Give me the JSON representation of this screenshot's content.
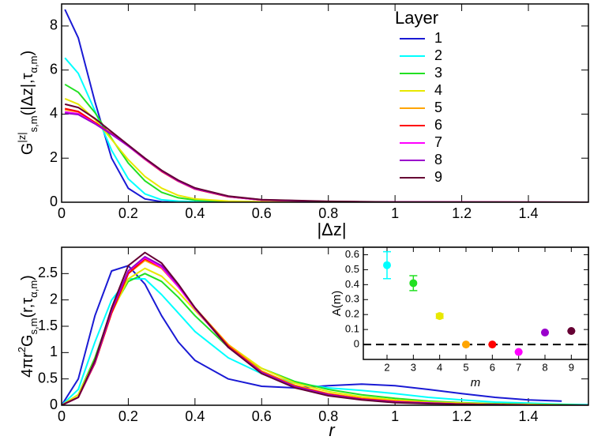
{
  "chart_data": [
    {
      "type": "line",
      "xlabel": "|Δz|",
      "ylabel": [
        {
          "text": "G"
        },
        {
          "text": "|z|",
          "role": "sup"
        },
        {
          "text": "s,m",
          "role": "sub"
        },
        {
          "text": "(|Δz|,τ"
        },
        {
          "text": "α,m",
          "role": "sub"
        },
        {
          "text": ")"
        }
      ],
      "xlim": [
        0,
        1.58
      ],
      "ylim": [
        0,
        9
      ],
      "xticks": [
        0,
        0.2,
        0.4,
        0.6,
        0.8,
        1,
        1.2,
        1.4
      ],
      "yticks": [
        0,
        2,
        4,
        6,
        8
      ],
      "legend_title": "Layer",
      "x": [
        0.01,
        0.05,
        0.1,
        0.15,
        0.2,
        0.25,
        0.3,
        0.35,
        0.4,
        0.5,
        0.6,
        0.8,
        1.0,
        1.58
      ],
      "series": [
        {
          "name": "1",
          "color": "#1a1ad4",
          "values": [
            8.75,
            7.46,
            4.56,
            2.0,
            0.63,
            0.15,
            0.02,
            0,
            0,
            0,
            0,
            0,
            0,
            0
          ]
        },
        {
          "name": "2",
          "color": "#00ffff",
          "values": [
            6.55,
            5.85,
            4.15,
            2.36,
            1.06,
            0.38,
            0.11,
            0.05,
            0.03,
            0.01,
            0,
            0,
            0,
            0
          ]
        },
        {
          "name": "3",
          "color": "#22e022",
          "values": [
            5.35,
            4.99,
            4.07,
            2.89,
            1.78,
            0.97,
            0.45,
            0.2,
            0.1,
            0.03,
            0.01,
            0,
            0,
            0
          ]
        },
        {
          "name": "4",
          "color": "#e8e800",
          "values": [
            4.7,
            4.45,
            3.76,
            2.85,
            1.93,
            1.17,
            0.64,
            0.31,
            0.15,
            0.05,
            0.02,
            0,
            0,
            0
          ]
        },
        {
          "name": "5",
          "color": "#ffa500",
          "values": [
            4.2,
            4.1,
            3.6,
            3.1,
            2.55,
            1.95,
            1.4,
            0.95,
            0.6,
            0.25,
            0.1,
            0.03,
            0.01,
            0
          ]
        },
        {
          "name": "6",
          "color": "#ff0000",
          "values": [
            4.25,
            4.12,
            3.62,
            3.1,
            2.55,
            1.95,
            1.4,
            0.95,
            0.6,
            0.25,
            0.1,
            0.03,
            0.01,
            0
          ]
        },
        {
          "name": "7",
          "color": "#ff00ff",
          "values": [
            4.1,
            4.02,
            3.58,
            3.08,
            2.55,
            1.96,
            1.42,
            0.96,
            0.61,
            0.26,
            0.1,
            0.03,
            0.01,
            0
          ]
        },
        {
          "name": "8",
          "color": "#9a00cc",
          "values": [
            4.05,
            3.98,
            3.56,
            3.08,
            2.56,
            1.98,
            1.43,
            0.97,
            0.62,
            0.26,
            0.11,
            0.03,
            0.01,
            0
          ]
        },
        {
          "name": "9",
          "color": "#660033",
          "values": [
            4.45,
            4.3,
            3.8,
            3.2,
            2.6,
            2.0,
            1.45,
            1.0,
            0.65,
            0.28,
            0.12,
            0.04,
            0.01,
            0
          ]
        }
      ]
    },
    {
      "type": "line",
      "xlabel": "r",
      "ylabel": [
        {
          "text": "4πr"
        },
        {
          "text": "2",
          "role": "sup"
        },
        {
          "text": "G"
        },
        {
          "text": "s,m",
          "role": "sub"
        },
        {
          "text": "(r,τ"
        },
        {
          "text": "α,m",
          "role": "sub"
        },
        {
          "text": ")"
        }
      ],
      "xlim": [
        0,
        1.58
      ],
      "ylim": [
        0,
        3
      ],
      "xticks": [
        0,
        0.2,
        0.4,
        0.6,
        0.8,
        1,
        1.2,
        1.4
      ],
      "yticks": [
        0,
        0.5,
        1,
        1.5,
        2,
        2.5
      ],
      "x": [
        0,
        0.05,
        0.1,
        0.15,
        0.2,
        0.25,
        0.3,
        0.35,
        0.4,
        0.5,
        0.6,
        0.7,
        0.8,
        0.9,
        1.0,
        1.1,
        1.2,
        1.3,
        1.4,
        1.5,
        1.58
      ],
      "series": [
        {
          "name": "1",
          "color": "#1a1ad4",
          "values": [
            0,
            0.5,
            1.7,
            2.55,
            2.65,
            2.3,
            1.7,
            1.2,
            0.85,
            0.5,
            0.36,
            0.33,
            0.37,
            0.4,
            0.37,
            0.3,
            0.22,
            0.15,
            0.1,
            0.08,
            null
          ]
        },
        {
          "name": "2",
          "color": "#00ffff",
          "values": [
            0,
            0.3,
            1.2,
            2.0,
            2.4,
            2.4,
            2.1,
            1.75,
            1.4,
            0.9,
            0.6,
            0.42,
            0.33,
            0.28,
            0.22,
            0.15,
            0.1,
            0.06,
            0.04,
            0.02,
            0.01
          ]
        },
        {
          "name": "3",
          "color": "#22e022",
          "values": [
            0,
            0.2,
            0.9,
            1.8,
            2.35,
            2.5,
            2.35,
            2.05,
            1.7,
            1.1,
            0.7,
            0.45,
            0.3,
            0.2,
            0.13,
            0.08,
            0.05,
            0.03,
            0.02,
            0.01,
            0
          ]
        },
        {
          "name": "4",
          "color": "#e8e800",
          "values": [
            0,
            0.2,
            0.85,
            1.75,
            2.4,
            2.6,
            2.45,
            2.15,
            1.8,
            1.15,
            0.7,
            0.42,
            0.26,
            0.16,
            0.1,
            0.06,
            0.04,
            0.02,
            0.01,
            0,
            0
          ]
        },
        {
          "name": "5",
          "color": "#ffa500",
          "values": [
            0,
            0.15,
            0.8,
            1.75,
            2.5,
            2.75,
            2.6,
            2.25,
            1.85,
            1.15,
            0.65,
            0.38,
            0.22,
            0.13,
            0.08,
            0.05,
            0.03,
            0.02,
            0.01,
            0,
            0
          ]
        },
        {
          "name": "6",
          "color": "#ff0000",
          "values": [
            0,
            0.15,
            0.8,
            1.75,
            2.5,
            2.78,
            2.62,
            2.25,
            1.85,
            1.12,
            0.63,
            0.36,
            0.21,
            0.12,
            0.07,
            0.04,
            0.02,
            0.01,
            0,
            0,
            0
          ]
        },
        {
          "name": "7",
          "color": "#ff00ff",
          "values": [
            0,
            0.15,
            0.82,
            1.8,
            2.55,
            2.8,
            2.62,
            2.25,
            1.83,
            1.1,
            0.62,
            0.35,
            0.2,
            0.11,
            0.06,
            0.04,
            0.02,
            0.01,
            0,
            0,
            0
          ]
        },
        {
          "name": "8",
          "color": "#9a00cc",
          "values": [
            0,
            0.15,
            0.82,
            1.8,
            2.55,
            2.82,
            2.65,
            2.28,
            1.85,
            1.1,
            0.62,
            0.35,
            0.2,
            0.11,
            0.06,
            0.04,
            0.02,
            0.01,
            0,
            0,
            0
          ]
        },
        {
          "name": "9",
          "color": "#660033",
          "values": [
            0,
            0.15,
            0.85,
            1.85,
            2.65,
            2.9,
            2.7,
            2.3,
            1.85,
            1.1,
            0.6,
            0.33,
            0.18,
            0.1,
            0.05,
            0.03,
            0.02,
            0.01,
            0,
            0,
            0
          ]
        }
      ]
    },
    {
      "type": "scatter",
      "xlabel": "m",
      "ylabel": [
        {
          "text": "A(m)"
        }
      ],
      "xlim": [
        1.1,
        9.65
      ],
      "ylim": [
        -0.1,
        0.65
      ],
      "xticks": [
        2,
        3,
        4,
        5,
        6,
        7,
        8,
        9
      ],
      "yticks": [
        0,
        0.1,
        0.2,
        0.3,
        0.4,
        0.5,
        0.6
      ],
      "hline": 0,
      "series": [
        {
          "x": [
            2,
            3,
            4,
            5,
            6,
            7,
            8,
            9
          ],
          "values": [
            0.53,
            0.41,
            0.19,
            0,
            0,
            -0.05,
            0.08,
            0.09
          ],
          "errors": [
            0.09,
            0.05,
            0.015,
            0,
            0,
            0,
            0,
            0
          ],
          "colors": [
            "#00ffff",
            "#22e022",
            "#e8e800",
            "#ffa500",
            "#ff0000",
            "#ff00ff",
            "#9a00cc",
            "#660033"
          ]
        }
      ]
    }
  ]
}
